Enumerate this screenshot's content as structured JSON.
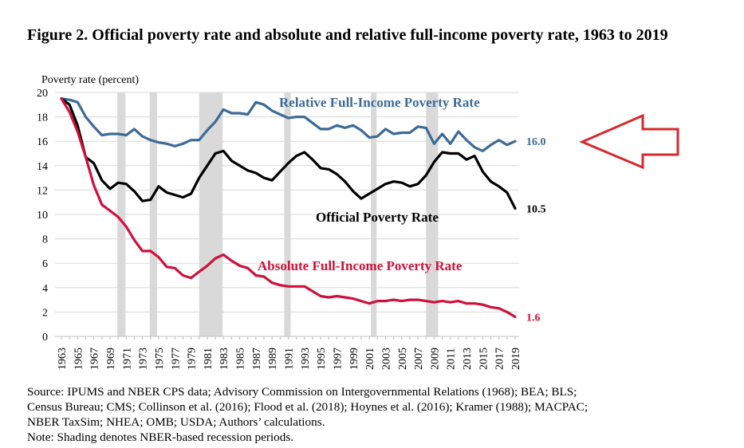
{
  "figure": {
    "title": "Figure 2. Official poverty rate and absolute and relative full-income poverty rate, 1963 to 2019"
  },
  "source_lines": [
    "Source: IPUMS and NBER CPS data; Advisory Commission on Intergovernmental Relations (1968); BEA; BLS;",
    "Census Bureau; CMS; Collinson et al. (2016); Flood et al. (2018); Hoynes et al. (2016); Kramer (1988); MACPAC;",
    "NBER TaxSim; NHEA; OMB; USDA; Authors’ calculations.",
    "Note: Shading denotes NBER-based recession periods."
  ],
  "colors": {
    "relative": "#3d6a96",
    "official": "#000000",
    "absolute": "#d0103a",
    "recession": "#d9d9d9",
    "arrow": "#d8282c",
    "grid": "#d9d9d9"
  },
  "chart_data": {
    "type": "line",
    "ylabel": "Poverty rate (percent)",
    "xlabel": "",
    "ylim": [
      0,
      20
    ],
    "yticks": [
      0,
      2,
      4,
      6,
      8,
      10,
      12,
      14,
      16,
      18,
      20
    ],
    "x": [
      1963,
      1964,
      1965,
      1966,
      1967,
      1968,
      1969,
      1970,
      1971,
      1972,
      1973,
      1974,
      1975,
      1976,
      1977,
      1978,
      1979,
      1980,
      1981,
      1982,
      1983,
      1984,
      1985,
      1986,
      1987,
      1988,
      1989,
      1990,
      1991,
      1992,
      1993,
      1994,
      1995,
      1996,
      1997,
      1998,
      1999,
      2000,
      2001,
      2002,
      2003,
      2004,
      2005,
      2006,
      2007,
      2008,
      2009,
      2010,
      2011,
      2012,
      2013,
      2014,
      2015,
      2016,
      2017,
      2018,
      2019
    ],
    "xtick_labels": [
      "1963",
      "1965",
      "1967",
      "1969",
      "1971",
      "1973",
      "1975",
      "1977",
      "1979",
      "1981",
      "1983",
      "1985",
      "1987",
      "1989",
      "1991",
      "1993",
      "1995",
      "1997",
      "1999",
      "2001",
      "2003",
      "2005",
      "2007",
      "2009",
      "2011",
      "2013",
      "2015",
      "2017",
      "2019"
    ],
    "recessions": [
      [
        1969.9,
        1970.9
      ],
      [
        1973.9,
        1974.8
      ],
      [
        1980.0,
        1982.9
      ],
      [
        1990.5,
        1991.3
      ],
      [
        2001.2,
        2001.9
      ],
      [
        2008.0,
        2009.5
      ]
    ],
    "series": [
      {
        "name": "Relative Full-Income Poverty Rate",
        "color_key": "relative",
        "end_label": "16.0",
        "values": [
          19.5,
          19.4,
          19.2,
          18.0,
          17.2,
          16.5,
          16.6,
          16.6,
          16.5,
          17.0,
          16.4,
          16.1,
          15.9,
          15.8,
          15.6,
          15.8,
          16.1,
          16.1,
          16.9,
          17.6,
          18.6,
          18.3,
          18.3,
          18.2,
          19.2,
          19.0,
          18.5,
          18.2,
          17.9,
          18.0,
          18.0,
          17.5,
          17.0,
          17.0,
          17.3,
          17.1,
          17.3,
          16.9,
          16.3,
          16.4,
          17.0,
          16.6,
          16.7,
          16.7,
          17.2,
          17.1,
          15.8,
          16.6,
          15.8,
          16.8,
          16.1,
          15.5,
          15.2,
          15.7,
          16.1,
          15.7,
          16.0
        ]
      },
      {
        "name": "Official Poverty Rate",
        "color_key": "official",
        "end_label": "10.5",
        "values": [
          19.5,
          19.0,
          17.3,
          14.7,
          14.2,
          12.8,
          12.1,
          12.6,
          12.5,
          11.9,
          11.1,
          11.2,
          12.3,
          11.8,
          11.6,
          11.4,
          11.7,
          13.0,
          14.0,
          15.0,
          15.2,
          14.4,
          14.0,
          13.6,
          13.4,
          13.0,
          12.8,
          13.5,
          14.2,
          14.8,
          15.1,
          14.5,
          13.8,
          13.7,
          13.3,
          12.7,
          11.9,
          11.3,
          11.7,
          12.1,
          12.5,
          12.7,
          12.6,
          12.3,
          12.5,
          13.2,
          14.3,
          15.1,
          15.0,
          15.0,
          14.5,
          14.8,
          13.5,
          12.7,
          12.3,
          11.8,
          10.5
        ]
      },
      {
        "name": "Absolute Full-Income Poverty Rate",
        "color_key": "absolute",
        "end_label": "1.6",
        "values": [
          19.5,
          18.4,
          16.8,
          14.7,
          12.4,
          10.8,
          10.3,
          9.8,
          9.0,
          7.9,
          7.0,
          7.0,
          6.5,
          5.7,
          5.6,
          5.0,
          4.8,
          5.3,
          5.8,
          6.4,
          6.7,
          6.2,
          5.8,
          5.6,
          5.0,
          4.9,
          4.4,
          4.2,
          4.1,
          4.1,
          4.1,
          3.7,
          3.3,
          3.2,
          3.3,
          3.2,
          3.1,
          2.9,
          2.7,
          2.9,
          2.9,
          3.0,
          2.9,
          3.0,
          3.0,
          2.9,
          2.8,
          2.9,
          2.8,
          2.9,
          2.7,
          2.7,
          2.6,
          2.4,
          2.3,
          2.0,
          1.6
        ]
      }
    ]
  }
}
